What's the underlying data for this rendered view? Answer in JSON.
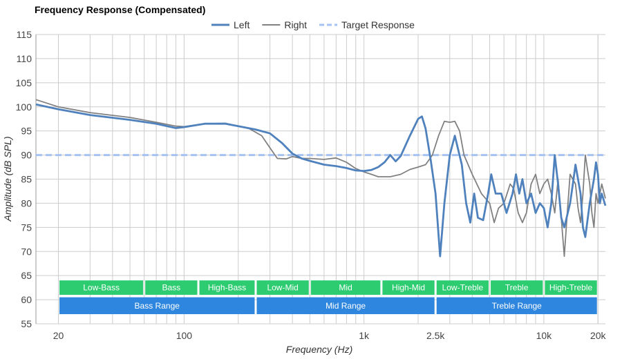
{
  "chart_data": {
    "type": "line",
    "title": "Frequency Response (Compensated)",
    "xlabel": "Frequency (Hz)",
    "ylabel": "Amplitude (dB SPL)",
    "x_scale": "log",
    "xlim": [
      15,
      22000
    ],
    "ylim": [
      55,
      115
    ],
    "grid": true,
    "legend_position": "top-center",
    "x_ticks": [
      {
        "value": 20,
        "label": "20"
      },
      {
        "value": 100,
        "label": "100"
      },
      {
        "value": 1000,
        "label": "1k"
      },
      {
        "value": 2500,
        "label": "2.5k"
      },
      {
        "value": 10000,
        "label": "10k"
      },
      {
        "value": 20000,
        "label": "20k"
      }
    ],
    "y_ticks": [
      55,
      60,
      65,
      70,
      75,
      80,
      85,
      90,
      95,
      100,
      105,
      110,
      115
    ],
    "series": [
      {
        "name": "Left",
        "color": "#4f81bd",
        "style": "solid",
        "points": [
          [
            15,
            100.5
          ],
          [
            20,
            99.5
          ],
          [
            30,
            98.3
          ],
          [
            50,
            97.3
          ],
          [
            70,
            96.5
          ],
          [
            90,
            95.6
          ],
          [
            100,
            95.8
          ],
          [
            130,
            96.5
          ],
          [
            170,
            96.5
          ],
          [
            200,
            96.0
          ],
          [
            250,
            95.3
          ],
          [
            300,
            94.5
          ],
          [
            350,
            92.5
          ],
          [
            400,
            90.3
          ],
          [
            450,
            89.3
          ],
          [
            500,
            88.8
          ],
          [
            600,
            88.0
          ],
          [
            700,
            87.7
          ],
          [
            800,
            87.3
          ],
          [
            900,
            86.8
          ],
          [
            1000,
            86.7
          ],
          [
            1100,
            86.9
          ],
          [
            1200,
            87.5
          ],
          [
            1300,
            88.5
          ],
          [
            1400,
            90.0
          ],
          [
            1500,
            88.7
          ],
          [
            1600,
            89.8
          ],
          [
            1800,
            94.0
          ],
          [
            2000,
            97.5
          ],
          [
            2100,
            98.0
          ],
          [
            2200,
            95.5
          ],
          [
            2350,
            89.0
          ],
          [
            2500,
            82.0
          ],
          [
            2650,
            69.0
          ],
          [
            2800,
            80.0
          ],
          [
            3000,
            90.0
          ],
          [
            3200,
            94.0
          ],
          [
            3500,
            88.0
          ],
          [
            3700,
            80.0
          ],
          [
            3900,
            76.0
          ],
          [
            4100,
            82.0
          ],
          [
            4300,
            77.0
          ],
          [
            4600,
            76.5
          ],
          [
            4900,
            82.0
          ],
          [
            5100,
            86.0
          ],
          [
            5400,
            82.0
          ],
          [
            5800,
            82.0
          ],
          [
            6200,
            78.0
          ],
          [
            6700,
            82.0
          ],
          [
            7000,
            86.0
          ],
          [
            7300,
            82.0
          ],
          [
            7600,
            85.0
          ],
          [
            8000,
            80.0
          ],
          [
            8500,
            82.0
          ],
          [
            9000,
            78.0
          ],
          [
            9500,
            80.0
          ],
          [
            10000,
            79.0
          ],
          [
            10500,
            75.0
          ],
          [
            11000,
            80.0
          ],
          [
            11500,
            90.0
          ],
          [
            12000,
            84.0
          ],
          [
            12500,
            77.0
          ],
          [
            13000,
            75.0
          ],
          [
            14000,
            80.0
          ],
          [
            14500,
            84.0
          ],
          [
            15000,
            88.0
          ],
          [
            16000,
            82.0
          ],
          [
            16500,
            75.0
          ],
          [
            17000,
            73.0
          ],
          [
            18000,
            80.0
          ],
          [
            19000,
            85.0
          ],
          [
            19500,
            88.5
          ],
          [
            20000,
            86.0
          ],
          [
            20500,
            80.0
          ],
          [
            21000,
            82.0
          ],
          [
            22000,
            79.5
          ]
        ]
      },
      {
        "name": "Right",
        "color": "#808080",
        "style": "solid",
        "points": [
          [
            15,
            101.5
          ],
          [
            20,
            100.0
          ],
          [
            30,
            98.8
          ],
          [
            50,
            97.8
          ],
          [
            70,
            96.8
          ],
          [
            90,
            96.0
          ],
          [
            100,
            95.9
          ],
          [
            130,
            96.5
          ],
          [
            170,
            96.6
          ],
          [
            200,
            96.0
          ],
          [
            230,
            95.5
          ],
          [
            270,
            94.0
          ],
          [
            300,
            91.5
          ],
          [
            330,
            89.3
          ],
          [
            370,
            89.2
          ],
          [
            400,
            89.7
          ],
          [
            450,
            89.3
          ],
          [
            500,
            89.3
          ],
          [
            600,
            89.1
          ],
          [
            700,
            89.4
          ],
          [
            800,
            88.5
          ],
          [
            900,
            87.2
          ],
          [
            1000,
            86.5
          ],
          [
            1100,
            86.0
          ],
          [
            1200,
            85.5
          ],
          [
            1400,
            85.5
          ],
          [
            1600,
            86.0
          ],
          [
            1800,
            87.0
          ],
          [
            2000,
            87.5
          ],
          [
            2200,
            88.0
          ],
          [
            2400,
            90.0
          ],
          [
            2600,
            94.0
          ],
          [
            2800,
            97.0
          ],
          [
            3000,
            96.8
          ],
          [
            3200,
            97.0
          ],
          [
            3400,
            95.0
          ],
          [
            3600,
            90.0
          ],
          [
            4000,
            86.0
          ],
          [
            4500,
            82.0
          ],
          [
            5000,
            80.0
          ],
          [
            5300,
            76.0
          ],
          [
            5600,
            79.0
          ],
          [
            6000,
            80.0
          ],
          [
            6500,
            84.0
          ],
          [
            6800,
            83.0
          ],
          [
            7200,
            78.0
          ],
          [
            7600,
            76.0
          ],
          [
            8000,
            78.0
          ],
          [
            8500,
            84.0
          ],
          [
            9000,
            86.0
          ],
          [
            9500,
            82.0
          ],
          [
            10000,
            84.0
          ],
          [
            10500,
            85.0
          ],
          [
            11000,
            82.0
          ],
          [
            11500,
            78.0
          ],
          [
            12000,
            85.0
          ],
          [
            12500,
            77.0
          ],
          [
            13000,
            69.0
          ],
          [
            13500,
            78.0
          ],
          [
            14000,
            86.0
          ],
          [
            15000,
            84.0
          ],
          [
            15500,
            79.0
          ],
          [
            16000,
            76.0
          ],
          [
            16500,
            82.0
          ],
          [
            17000,
            90.0
          ],
          [
            18000,
            84.0
          ],
          [
            18500,
            78.0
          ],
          [
            19000,
            75.0
          ],
          [
            19500,
            82.0
          ],
          [
            20000,
            80.0
          ],
          [
            21000,
            84.0
          ],
          [
            22000,
            81.0
          ]
        ]
      },
      {
        "name": "Target Response",
        "color": "#a4c2f4",
        "style": "dashed",
        "points": [
          [
            15,
            90.0
          ],
          [
            22000,
            90.0
          ]
        ]
      }
    ],
    "bands": [
      {
        "row": 1,
        "label": "Low-Bass",
        "from": 20,
        "to": 60,
        "color": "#2ecc71"
      },
      {
        "row": 1,
        "label": "Bass",
        "from": 60,
        "to": 120,
        "color": "#2ecc71"
      },
      {
        "row": 1,
        "label": "High-Bass",
        "from": 120,
        "to": 250,
        "color": "#2ecc71"
      },
      {
        "row": 1,
        "label": "Low-Mid",
        "from": 250,
        "to": 500,
        "color": "#2ecc71"
      },
      {
        "row": 1,
        "label": "Mid",
        "from": 500,
        "to": 1250,
        "color": "#2ecc71"
      },
      {
        "row": 1,
        "label": "High-Mid",
        "from": 1250,
        "to": 2500,
        "color": "#2ecc71"
      },
      {
        "row": 1,
        "label": "Low-Treble",
        "from": 2500,
        "to": 5000,
        "color": "#2ecc71"
      },
      {
        "row": 1,
        "label": "Treble",
        "from": 5000,
        "to": 10000,
        "color": "#2ecc71"
      },
      {
        "row": 1,
        "label": "High-Treble",
        "from": 10000,
        "to": 20000,
        "color": "#2ecc71"
      },
      {
        "row": 2,
        "label": "Bass Range",
        "from": 20,
        "to": 250,
        "color": "#2e86de"
      },
      {
        "row": 2,
        "label": "Mid Range",
        "from": 250,
        "to": 2500,
        "color": "#2e86de"
      },
      {
        "row": 2,
        "label": "Treble Range",
        "from": 2500,
        "to": 20000,
        "color": "#2e86de"
      }
    ],
    "band_rows": [
      {
        "row": 1,
        "y_top": 64,
        "y_bottom": 61
      },
      {
        "row": 2,
        "y_top": 60.5,
        "y_bottom": 57
      }
    ],
    "grid_color": "#cccccc"
  }
}
